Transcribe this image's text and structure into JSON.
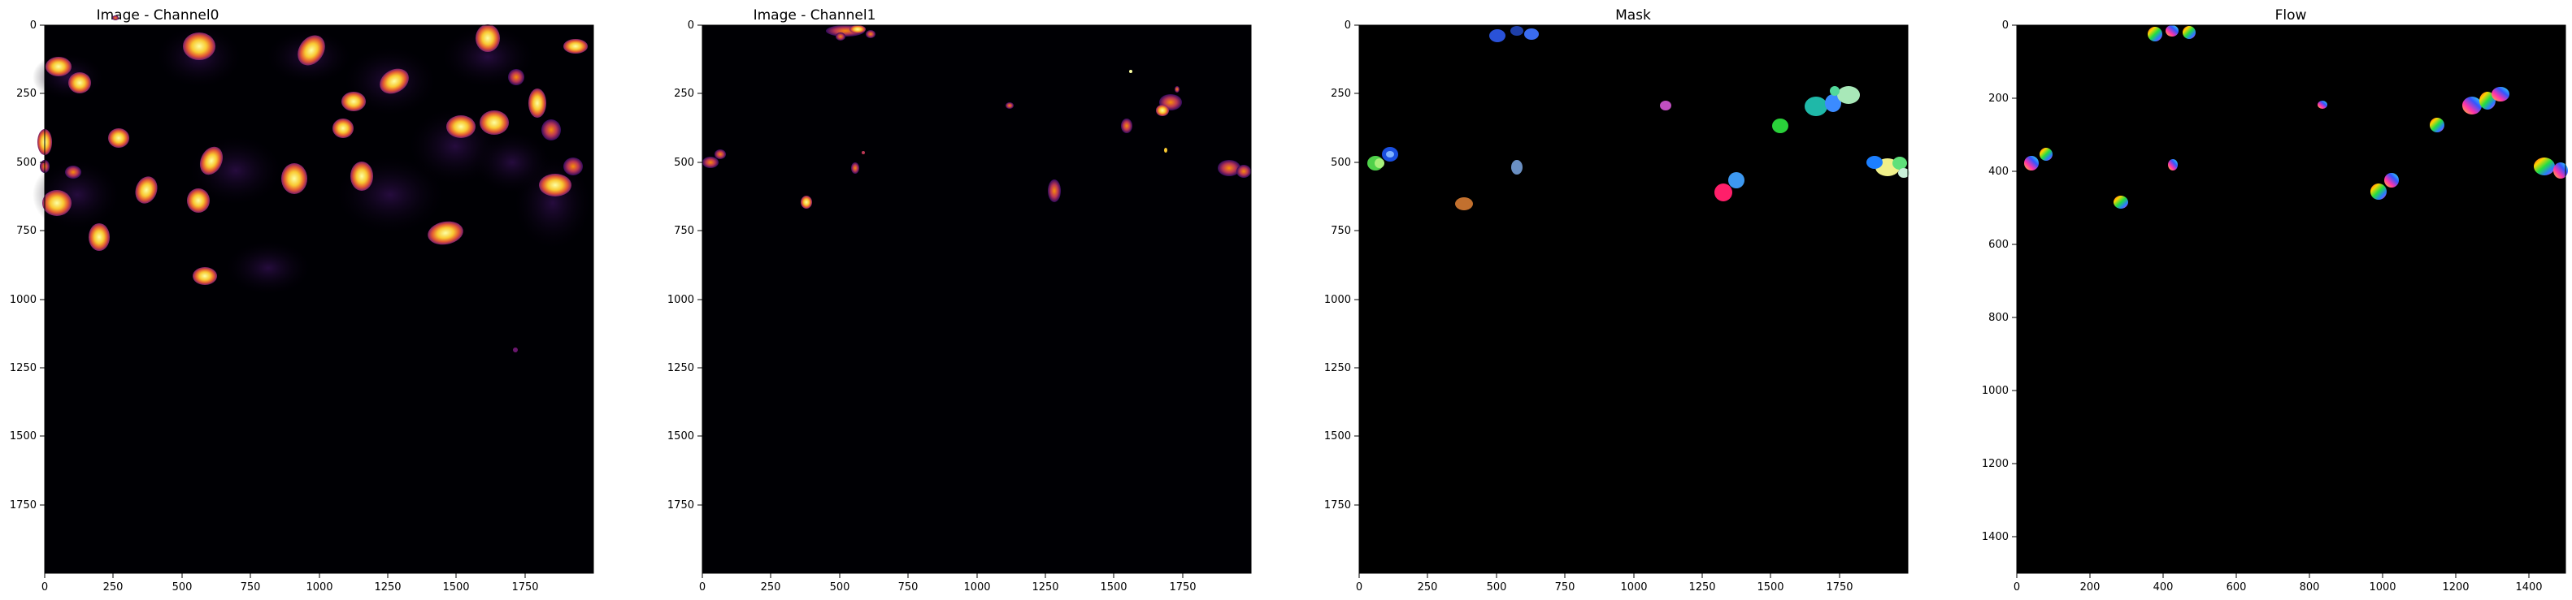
{
  "chart_data": [
    {
      "type": "image",
      "title": "Image - Channel0",
      "colormap": "inferno",
      "xlim": [
        0,
        2000
      ],
      "ylim": [
        0,
        2000
      ],
      "x_ticks": [
        "0",
        "250",
        "500",
        "750",
        "1000",
        "1250",
        "1500",
        "1750"
      ],
      "y_ticks": [
        "0",
        "250",
        "500",
        "750",
        "1000",
        "1250",
        "1500",
        "1750"
      ]
    },
    {
      "type": "image",
      "title": "Image - Channel1",
      "colormap": "inferno",
      "xlim": [
        0,
        2000
      ],
      "ylim": [
        0,
        2000
      ],
      "x_ticks": [
        "0",
        "250",
        "500",
        "750",
        "1000",
        "1250",
        "1500",
        "1750"
      ],
      "y_ticks": [
        "0",
        "250",
        "500",
        "750",
        "1000",
        "1250",
        "1500",
        "1750"
      ]
    },
    {
      "type": "image",
      "title": "Mask",
      "colormap": "categorical",
      "xlim": [
        0,
        2000
      ],
      "ylim": [
        0,
        2000
      ],
      "x_ticks": [
        "0",
        "250",
        "500",
        "750",
        "1000",
        "1250",
        "1500",
        "1750"
      ],
      "y_ticks": [
        "0",
        "250",
        "500",
        "750",
        "1000",
        "1250",
        "1500",
        "1750"
      ]
    },
    {
      "type": "image",
      "title": "Flow",
      "colormap": "hsv",
      "xlim": [
        0,
        1500
      ],
      "ylim": [
        0,
        1500
      ],
      "x_ticks": [
        "0",
        "200",
        "400",
        "600",
        "800",
        "1000",
        "1200",
        "1400"
      ],
      "y_ticks": [
        "0",
        "200",
        "400",
        "600",
        "800",
        "1000",
        "1200",
        "1400"
      ]
    }
  ]
}
